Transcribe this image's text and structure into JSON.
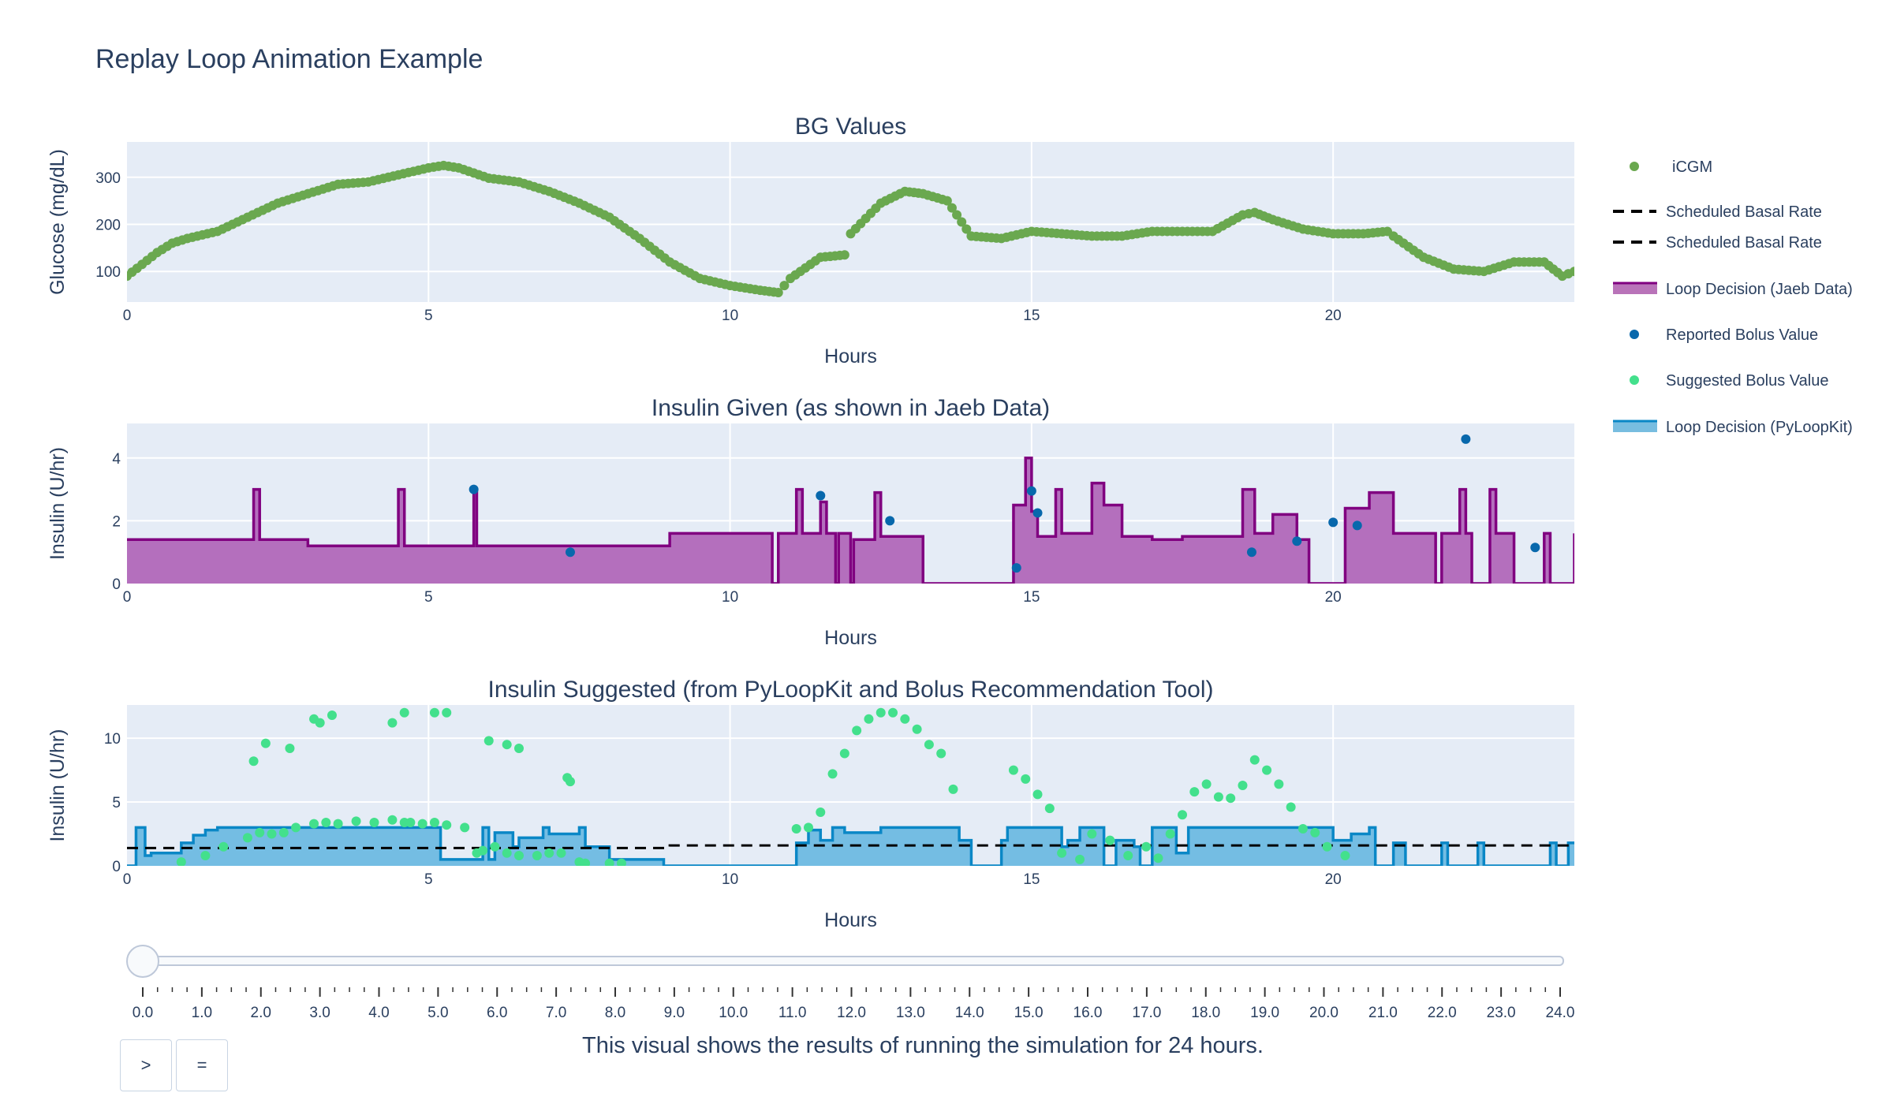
{
  "title": "Replay Loop Animation Example",
  "caption": "This visual shows the results of running the simulation for 24 hours.",
  "controls": {
    "play_label": ">",
    "pause_label": "="
  },
  "slider": {
    "value": 0.0,
    "ticks": [
      "0.0",
      "1.0",
      "2.0",
      "3.0",
      "4.0",
      "5.0",
      "6.0",
      "7.0",
      "8.0",
      "9.0",
      "10.0",
      "11.0",
      "12.0",
      "13.0",
      "14.0",
      "15.0",
      "16.0",
      "17.0",
      "18.0",
      "19.0",
      "20.0",
      "21.0",
      "22.0",
      "23.0",
      "24.0"
    ]
  },
  "legend": [
    {
      "label": "iCGM",
      "symbol": "dot",
      "color": "#6aa84f"
    },
    {
      "label": "Scheduled Basal Rate",
      "symbol": "dash",
      "color": "#000000"
    },
    {
      "label": "Scheduled Basal Rate",
      "symbol": "dash",
      "color": "#000000"
    },
    {
      "label": "Loop Decision (Jaeb Data)",
      "symbol": "fill",
      "color": "#800080"
    },
    {
      "label": "Reported Bolus Value",
      "symbol": "dot",
      "color": "#0868ac"
    },
    {
      "label": "Suggested Bolus Value",
      "symbol": "dot",
      "color": "#43e08c"
    },
    {
      "label": "Loop Decision (PyLoopKit)",
      "symbol": "fill",
      "color": "#0a87c6"
    }
  ],
  "colors": {
    "plot_bg": "#e5ecf6",
    "icgm": "#6aa84f",
    "jaeb_line": "#800080",
    "jaeb_fill": "#b46fbd",
    "reported_bolus": "#0868ac",
    "suggested_bolus": "#43e08c",
    "pyloop_line": "#0a87c6",
    "pyloop_fill": "#74bde3",
    "basal": "#000000"
  },
  "chart_data": [
    {
      "type": "scatter",
      "title": "BG Values",
      "xlabel": "Hours",
      "ylabel": "Glucose (mg/dL)",
      "xlim": [
        0,
        24
      ],
      "ylim": [
        35,
        375
      ],
      "xticks": [
        0,
        5,
        10,
        15,
        20
      ],
      "yticks": [
        100,
        200,
        300
      ],
      "series": [
        {
          "name": "iCGM",
          "x": [
            0,
            0.5,
            0.75,
            1,
            1.5,
            2,
            2.5,
            3,
            3.5,
            4,
            4.5,
            5,
            5.25,
            5.5,
            6,
            6.5,
            7,
            7.5,
            8,
            8.5,
            9,
            9.5,
            10,
            10.5,
            10.8,
            11,
            11.5,
            11.9,
            12,
            12.5,
            12.9,
            13.2,
            13.6,
            14,
            14.5,
            15,
            15.5,
            16,
            16.5,
            17,
            17.5,
            18,
            18.5,
            18.7,
            19,
            19.5,
            20,
            20.5,
            20.9,
            21,
            21.5,
            22,
            22.5,
            23,
            23.5,
            23.8,
            24
          ],
          "y": [
            90,
            140,
            160,
            170,
            185,
            215,
            245,
            265,
            285,
            290,
            305,
            320,
            325,
            320,
            298,
            290,
            270,
            245,
            215,
            170,
            120,
            85,
            70,
            60,
            55,
            85,
            130,
            135,
            180,
            245,
            270,
            265,
            250,
            175,
            170,
            185,
            180,
            175,
            175,
            185,
            185,
            185,
            220,
            225,
            210,
            190,
            180,
            180,
            185,
            175,
            130,
            105,
            100,
            120,
            120,
            90,
            100
          ]
        }
      ]
    },
    {
      "type": "area",
      "title": "Insulin Given (as shown in Jaeb Data)",
      "xlabel": "Hours",
      "ylabel": "Insulin (U/hr)",
      "xlim": [
        0,
        24
      ],
      "ylim": [
        0,
        5.1
      ],
      "xticks": [
        0,
        5,
        10,
        15,
        20
      ],
      "yticks": [
        0,
        2,
        4
      ],
      "series": [
        {
          "name": "Loop Decision (Jaeb Data)",
          "step_x": [
            0,
            2.1,
            2.2,
            3,
            4.5,
            4.6,
            5.75,
            5.8,
            9,
            10.7,
            10.8,
            11.1,
            11.2,
            11.5,
            11.6,
            11.75,
            11.8,
            12.0,
            12.05,
            12.4,
            12.5,
            13.1,
            13.2,
            14.7,
            14.9,
            15,
            15.1,
            15.4,
            15.5,
            16,
            16.2,
            16.5,
            17,
            17.5,
            18,
            18.5,
            18.7,
            19,
            19.4,
            19.6,
            20.2,
            20.6,
            21,
            21.7,
            21.8,
            22.1,
            22.2,
            22.3,
            22.6,
            22.7,
            23.0,
            23.5,
            23.6,
            24
          ],
          "step_y": [
            1.4,
            3.0,
            1.4,
            1.2,
            3.0,
            1.2,
            3.0,
            1.2,
            1.6,
            0,
            1.6,
            3.0,
            1.6,
            2.6,
            1.6,
            0,
            1.6,
            0,
            1.4,
            2.9,
            1.5,
            1.5,
            0,
            2.5,
            4.0,
            2.3,
            1.5,
            3.0,
            1.6,
            3.2,
            2.5,
            1.5,
            1.4,
            1.5,
            1.5,
            3.0,
            1.6,
            2.2,
            1.4,
            0,
            2.4,
            2.9,
            1.6,
            0,
            1.6,
            3.0,
            1.6,
            0,
            3.0,
            1.6,
            0,
            1.6,
            0,
            1.6
          ]
        },
        {
          "name": "Reported Bolus Value",
          "x": [
            5.75,
            7.35,
            11.5,
            12.65,
            14.75,
            15.0,
            15.1,
            18.65,
            19.4,
            20.0,
            20.4,
            22.2,
            23.35
          ],
          "y": [
            3.0,
            1.0,
            2.8,
            2.0,
            0.5,
            2.95,
            2.25,
            1.0,
            1.35,
            1.95,
            1.85,
            4.6,
            1.15
          ]
        }
      ]
    },
    {
      "type": "area",
      "title": "Insulin Suggested (from PyLoopKit and Bolus Recommendation Tool)",
      "xlabel": "Hours",
      "ylabel": "Insulin (U/hr)",
      "xlim": [
        0,
        24
      ],
      "ylim": [
        0,
        12.6
      ],
      "xticks": [
        0,
        5,
        10,
        15,
        20
      ],
      "yticks": [
        0,
        5,
        10
      ],
      "series": [
        {
          "name": "Loop Decision (PyLoopKit)",
          "step_x": [
            0,
            0.15,
            0.3,
            0.4,
            0.9,
            1.1,
            1.3,
            1.5,
            1.7,
            2.1,
            2.3,
            3.0,
            5.0,
            5.2,
            5.9,
            6.0,
            6.1,
            6.4,
            6.5,
            6.9,
            7.0,
            7.5,
            7.6,
            8.0,
            8.9,
            10.8,
            11.1,
            11.3,
            11.5,
            11.7,
            11.9,
            12.5,
            13.5,
            13.8,
            14.0,
            14.5,
            14.6,
            15.5,
            15.6,
            15.8,
            16.2,
            16.4,
            16.7,
            16.8,
            17.0,
            17.4,
            17.6,
            18.0,
            20.0,
            20.3,
            20.6,
            20.7,
            21.0,
            21.2,
            21.3,
            21.8,
            21.9,
            22.4,
            22.5,
            23.6,
            23.7,
            23.9,
            24
          ],
          "step_y": [
            0,
            3.0,
            0.8,
            1.0,
            1.8,
            2.4,
            2.8,
            3.0,
            3.0,
            3.0,
            3.0,
            3.0,
            3.0,
            0.5,
            3.0,
            0.5,
            2.6,
            1.5,
            2.2,
            3.0,
            2.5,
            3.0,
            1.5,
            0.5,
            0,
            0,
            1.8,
            2.8,
            2.0,
            3.0,
            2.6,
            3.0,
            3.0,
            2.0,
            0,
            2.0,
            3.0,
            1.5,
            2.0,
            3.0,
            0,
            2.0,
            1.5,
            0,
            3.0,
            1.0,
            3.0,
            3.0,
            2.0,
            2.5,
            3.0,
            0,
            1.8,
            0,
            0,
            1.8,
            0,
            1.8,
            0,
            1.8,
            0,
            1.8,
            1.8
          ]
        },
        {
          "name": "Scheduled Basal Rate",
          "step_x": [
            0,
            9,
            24
          ],
          "step_y": [
            1.4,
            1.6,
            1.6
          ]
        },
        {
          "name": "Suggested Bolus Value",
          "x": [
            0.9,
            1.3,
            1.6,
            2.0,
            2.2,
            2.4,
            2.6,
            2.8,
            3.1,
            3.3,
            3.5,
            3.8,
            4.1,
            4.4,
            4.6,
            4.7,
            4.9,
            5.1,
            5.3,
            5.6,
            5.8,
            5.9,
            6.1,
            6.3,
            6.5,
            6.8,
            7.0,
            7.2,
            7.35,
            7.5,
            7.6,
            8.0,
            8.2,
            11.1,
            11.3,
            11.5,
            11.7,
            11.9,
            12.1,
            12.3,
            12.5,
            12.7,
            12.9,
            13.1,
            13.3,
            13.5,
            13.7,
            14.7,
            14.9,
            15.1,
            15.3,
            15.5,
            15.8,
            16.0,
            16.3,
            16.6,
            16.9,
            17.1,
            17.3,
            17.5,
            17.7,
            17.9,
            18.1,
            18.3,
            18.5,
            18.7,
            18.9,
            19.1,
            19.3,
            19.5,
            19.7,
            19.9,
            20.2
          ],
          "y": [
            0.3,
            0.8,
            1.5,
            2.2,
            2.6,
            2.5,
            2.6,
            3.0,
            3.3,
            3.4,
            3.3,
            3.5,
            3.4,
            3.6,
            3.4,
            3.4,
            3.3,
            3.4,
            3.2,
            3.0,
            1.0,
            1.2,
            1.5,
            1.0,
            0.8,
            0.8,
            1.0,
            1.0,
            6.6,
            0.3,
            0.2,
            0.2,
            0.2,
            2.9,
            3.0,
            4.2,
            7.2,
            8.8,
            10.6,
            11.5,
            12.0,
            12.0,
            11.5,
            10.7,
            9.5,
            8.8,
            6.0,
            7.5,
            6.8,
            5.6,
            4.5,
            1.0,
            0.5,
            2.5,
            2.0,
            0.8,
            1.5,
            0.6,
            2.5,
            4.0,
            5.8,
            6.4,
            5.4,
            5.3,
            6.3,
            8.3,
            7.5,
            6.4,
            4.6,
            2.9,
            2.6,
            1.5,
            0.8
          ],
          "extra_high_x": [
            2.1,
            2.3,
            2.7,
            3.1,
            3.2,
            3.4,
            4.4,
            4.6,
            5.1,
            5.3,
            6.0,
            6.3,
            6.5,
            7.3
          ],
          "extra_high_y": [
            8.2,
            9.6,
            9.2,
            11.5,
            11.2,
            11.8,
            11.2,
            12.0,
            12.0,
            12.0,
            9.8,
            9.5,
            9.2,
            6.9
          ]
        }
      ]
    }
  ]
}
